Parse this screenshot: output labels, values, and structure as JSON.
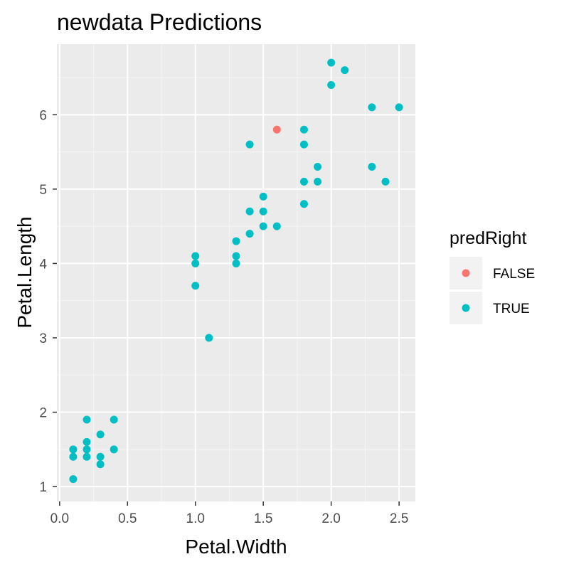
{
  "chart_data": {
    "type": "scatter",
    "title": "newdata Predictions",
    "xlabel": "Petal.Width",
    "ylabel": "Petal.Length",
    "xlim": [
      -0.02,
      2.62
    ],
    "ylim": [
      0.8,
      6.95
    ],
    "x_ticks": [
      "0.0",
      "0.5",
      "1.0",
      "1.5",
      "2.0",
      "2.5"
    ],
    "y_ticks": [
      "1",
      "2",
      "3",
      "4",
      "5",
      "6"
    ],
    "grid": true,
    "legend": {
      "title": "predRight",
      "position": "right",
      "entries": [
        {
          "label": "FALSE",
          "color": "#F8766D"
        },
        {
          "label": "TRUE",
          "color": "#00BFC4"
        }
      ]
    },
    "series": [
      {
        "name": "FALSE",
        "color": "#F8766D",
        "points": [
          [
            1.6,
            5.8
          ]
        ]
      },
      {
        "name": "TRUE",
        "color": "#00BFC4",
        "points": [
          [
            0.1,
            1.1
          ],
          [
            0.1,
            1.4
          ],
          [
            0.1,
            1.5
          ],
          [
            0.2,
            1.4
          ],
          [
            0.2,
            1.5
          ],
          [
            0.2,
            1.6
          ],
          [
            0.2,
            1.9
          ],
          [
            0.3,
            1.3
          ],
          [
            0.3,
            1.4
          ],
          [
            0.3,
            1.7
          ],
          [
            0.4,
            1.5
          ],
          [
            0.4,
            1.9
          ],
          [
            1.0,
            3.7
          ],
          [
            1.0,
            4.0
          ],
          [
            1.0,
            4.1
          ],
          [
            1.1,
            3.0
          ],
          [
            1.3,
            4.0
          ],
          [
            1.3,
            4.1
          ],
          [
            1.3,
            4.3
          ],
          [
            1.4,
            4.4
          ],
          [
            1.4,
            4.7
          ],
          [
            1.4,
            5.6
          ],
          [
            1.5,
            4.5
          ],
          [
            1.5,
            4.7
          ],
          [
            1.5,
            4.9
          ],
          [
            1.6,
            4.5
          ],
          [
            1.8,
            4.8
          ],
          [
            1.8,
            5.1
          ],
          [
            1.8,
            5.6
          ],
          [
            1.8,
            5.8
          ],
          [
            1.9,
            5.1
          ],
          [
            1.9,
            5.3
          ],
          [
            2.0,
            6.4
          ],
          [
            2.0,
            6.7
          ],
          [
            2.1,
            6.6
          ],
          [
            2.3,
            5.3
          ],
          [
            2.3,
            6.1
          ],
          [
            2.4,
            5.1
          ],
          [
            2.5,
            6.1
          ]
        ]
      }
    ]
  },
  "colors": {
    "panel_background": "#EBEBEB",
    "grid_major": "#FFFFFF",
    "tick_text": "#4D4D4D"
  }
}
